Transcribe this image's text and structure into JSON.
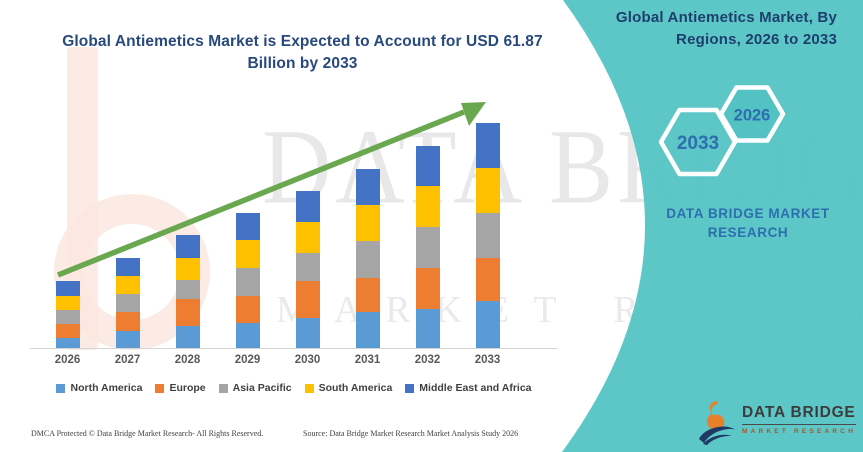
{
  "left_panel": {
    "title_line1": "Global Antiemetics Market is Expected to Account for USD 61.87",
    "title_line2": "Billion by 2033",
    "footer_left": "DMCA Protected © Data Bridge Market Research-  All Rights Reserved.",
    "footer_source": "Source: Data Bridge Market Research  Market Analysis Study 2026",
    "watermark_row1": "DATA BRIDGE",
    "watermark_row2": "MARKET RESEARCH"
  },
  "right_panel": {
    "heading_line1": "Global Antiemetics Market, By",
    "heading_line2": "Regions, 2026 to 2033",
    "hexagon_back_label": "2033",
    "hexagon_front_label": "2026",
    "brand_line1": "DATA BRIDGE MARKET",
    "brand_line2": "RESEARCH",
    "logo_name": "DATA BRIDGE",
    "logo_tagline": "MARKET RESEARCH"
  },
  "chart_data": {
    "type": "bar",
    "stacked": true,
    "title": "Global Antiemetics Market is Expected to Account for USD 61.87 Billion by 2033",
    "unit": "USD Billion",
    "categories": [
      "2026",
      "2027",
      "2028",
      "2029",
      "2030",
      "2031",
      "2032",
      "2033"
    ],
    "series": [
      {
        "name": "North America",
        "color": "#5B9BD5",
        "values": [
          2.8,
          4.8,
          6.2,
          6.9,
          8.4,
          10.0,
          10.7,
          12.9
        ]
      },
      {
        "name": "Europe",
        "color": "#ED7D31",
        "values": [
          3.8,
          5.0,
          7.3,
          7.3,
          10.1,
          9.3,
          11.4,
          11.8
        ]
      },
      {
        "name": "Asia Pacific",
        "color": "#A5A5A5",
        "values": [
          3.9,
          5.0,
          5.2,
          7.8,
          7.6,
          10.1,
          11.2,
          12.4
        ]
      },
      {
        "name": "South America",
        "color": "#FFC000",
        "values": [
          3.8,
          5.0,
          6.0,
          7.8,
          8.5,
          9.9,
          11.2,
          12.4
        ]
      },
      {
        "name": "Middle East and Africa",
        "color": "#4472C4",
        "values": [
          4.1,
          4.9,
          6.4,
          7.3,
          8.6,
          9.9,
          11.0,
          12.37
        ]
      }
    ],
    "totals": [
      18.4,
      24.7,
      31.1,
      37.1,
      43.2,
      49.2,
      55.5,
      61.87
    ],
    "ylim": [
      0,
      62
    ],
    "grid": false,
    "legend_position": "bottom",
    "annotations": [
      "upward trend arrow"
    ]
  },
  "colors": {
    "panel_teal": "#53C2C3",
    "arrow_green": "#69A84F",
    "title_blue": "#28497C",
    "heading_navy": "#1E3F6E",
    "brand_blue": "#2D6FAE",
    "axis_label_gray": "#595959",
    "logo_orange": "#E8802B",
    "logo_navy": "#1F3864",
    "watermark_pink": "#FBE7E1"
  }
}
